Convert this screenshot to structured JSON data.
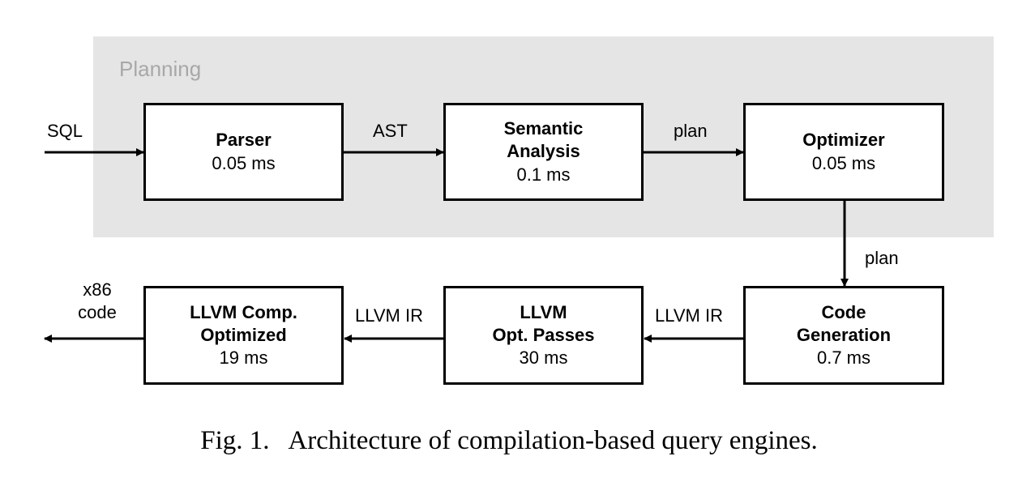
{
  "planning": {
    "label": "Planning"
  },
  "nodes": {
    "parser": {
      "title": "Parser",
      "time": "0.05 ms"
    },
    "semantic": {
      "title": "Semantic\nAnalysis",
      "time": "0.1 ms"
    },
    "optimizer": {
      "title": "Optimizer",
      "time": "0.05 ms"
    },
    "codegen": {
      "title": "Code\nGeneration",
      "time": "0.7 ms"
    },
    "llvm_opt": {
      "title": "LLVM\nOpt. Passes",
      "time": "30 ms"
    },
    "llvm_comp": {
      "title": "LLVM Comp.\nOptimized",
      "time": "19 ms"
    }
  },
  "edges": {
    "sql": "SQL",
    "ast": "AST",
    "plan1": "plan",
    "plan2": "plan",
    "llvm_ir1": "LLVM IR",
    "llvm_ir2": "LLVM IR",
    "x86": "x86\ncode"
  },
  "caption": "Fig. 1.   Architecture of compilation-based query engines."
}
